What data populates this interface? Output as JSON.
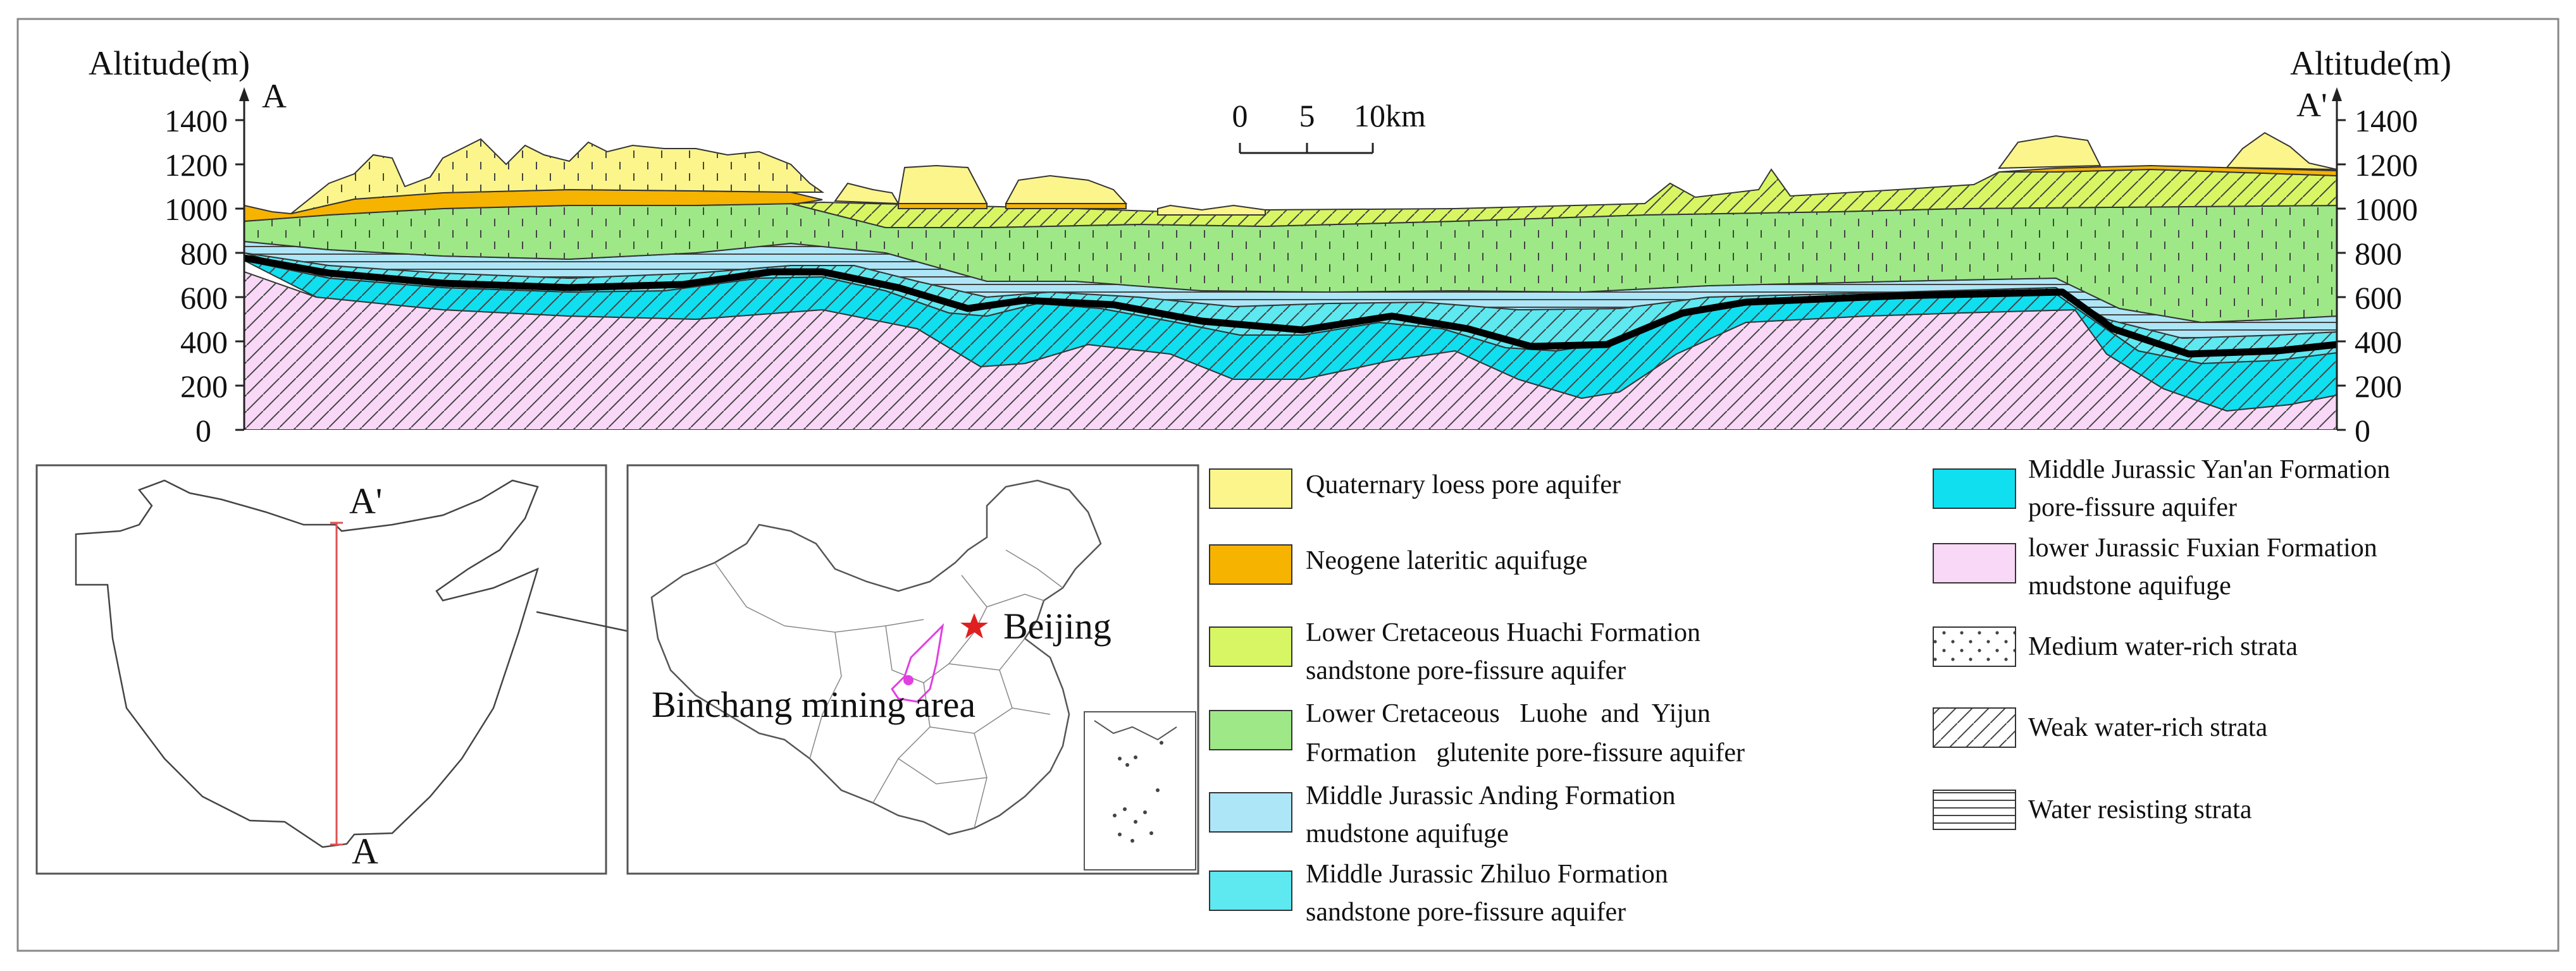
{
  "axis": {
    "left_title": "Altitude(m)",
    "right_title": "Altitude(m)",
    "ticks": [
      "0",
      "200",
      "400",
      "600",
      "800",
      "1000",
      "1200",
      "1400"
    ],
    "point_left": "A",
    "point_right": "A'"
  },
  "scale_bar": {
    "labels": [
      "0",
      "5",
      "10km"
    ]
  },
  "inset_section": {
    "label_top": "A'",
    "label_bottom": "A"
  },
  "inset_china": {
    "city": "Beijing",
    "area": "Binchang mining area"
  },
  "legend": {
    "left": [
      {
        "lines": [
          "Quaternary loess pore aquifer"
        ],
        "color": "#fbf58c"
      },
      {
        "lines": [
          "Neogene lateritic aquifuge"
        ],
        "color": "#f6b300"
      },
      {
        "lines": [
          "Lower Cretaceous Huachi Formation",
          "sandstone pore-fissure aquifer"
        ],
        "color": "#d8f663"
      },
      {
        "lines": [
          "Lower Cretaceous   Luohe  and  Yijun",
          "Formation   glutenite pore-fissure aquifer"
        ],
        "color": "#9ee887"
      },
      {
        "lines": [
          "Middle Jurassic Anding Formation",
          "mudstone aquifuge"
        ],
        "color": "#ade6f7"
      },
      {
        "lines": [
          "Middle Jurassic Zhiluo Formation",
          "sandstone pore-fissure aquifer"
        ],
        "color": "#5ee8f0"
      }
    ],
    "right": [
      {
        "lines": [
          "Middle Jurassic Yan'an Formation",
          "pore-fissure aquifer"
        ],
        "color": "#10dff0",
        "pattern": ""
      },
      {
        "lines": [
          "lower Jurassic Fuxian Formation",
          "mudstone aquifuge"
        ],
        "color": "#f8d8f6",
        "pattern": ""
      },
      {
        "lines": [
          "Medium water-rich strata"
        ],
        "color": "#ffffff",
        "pattern": "dots"
      },
      {
        "lines": [
          "Weak water-rich strata"
        ],
        "color": "#ffffff",
        "pattern": "hatch"
      },
      {
        "lines": [
          "Water resisting strata"
        ],
        "color": "#ffffff",
        "pattern": "horiz"
      }
    ]
  }
}
